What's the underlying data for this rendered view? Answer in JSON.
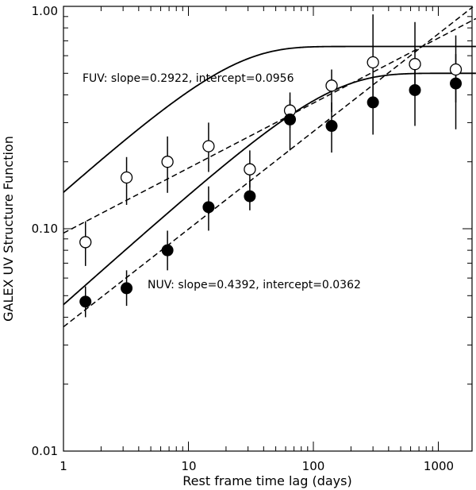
{
  "chart_data": {
    "type": "scatter",
    "title": "",
    "xlabel": "Rest frame time lag (days)",
    "ylabel": "GALEX UV Structure Function",
    "xscale": "log",
    "yscale": "log",
    "xlim": [
      1,
      2000
    ],
    "ylim": [
      0.01,
      1.0
    ],
    "x_tick_labels": [
      "1",
      "10",
      "100",
      "1000"
    ],
    "y_tick_labels": [
      "0.01",
      "0.10",
      "1.00"
    ],
    "annotations": [
      {
        "id": "fuv",
        "text": "FUV: slope=0.2922, intercept=0.0956"
      },
      {
        "id": "nuv",
        "text": "NUV: slope=0.4392, intercept=0.0362"
      }
    ],
    "series": [
      {
        "name": "FUV",
        "marker": "open-circle",
        "x": [
          1.5,
          3.2,
          6.8,
          14.5,
          31,
          65,
          140,
          300,
          650,
          1380
        ],
        "y": [
          0.087,
          0.17,
          0.2,
          0.235,
          0.185,
          0.34,
          0.44,
          0.56,
          0.55,
          0.52
        ],
        "y_err_low": [
          0.068,
          0.128,
          0.145,
          0.18,
          0.153,
          0.285,
          0.335,
          0.385,
          0.4,
          0.37
        ],
        "y_err_high": [
          0.108,
          0.21,
          0.26,
          0.3,
          0.225,
          0.38,
          0.52,
          0.92,
          0.85,
          0.74
        ]
      },
      {
        "name": "NUV",
        "marker": "filled-circle",
        "x": [
          1.5,
          3.2,
          6.8,
          14.5,
          31,
          65,
          140,
          300,
          650,
          1380
        ],
        "y": [
          0.047,
          0.054,
          0.08,
          0.125,
          0.14,
          0.31,
          0.29,
          0.37,
          0.42,
          0.45
        ],
        "y_err_low": [
          0.04,
          0.045,
          0.065,
          0.098,
          0.121,
          0.225,
          0.22,
          0.265,
          0.29,
          0.28
        ],
        "y_err_high": [
          0.055,
          0.065,
          0.098,
          0.155,
          0.163,
          0.41,
          0.37,
          0.48,
          0.56,
          0.61
        ]
      }
    ],
    "fits": [
      {
        "name": "FUV power law",
        "style": "dashed",
        "form": "intercept*x^slope",
        "slope": 0.2922,
        "intercept": 0.0956
      },
      {
        "name": "NUV power law",
        "style": "dashed",
        "form": "intercept*x^slope",
        "slope": 0.4392,
        "intercept": 0.0362
      },
      {
        "name": "FUV saturating model",
        "style": "solid",
        "form": "sf_inf*sqrt(1-exp(-x/tau))",
        "sf_inf": 0.66,
        "tau": 20
      },
      {
        "name": "NUV saturating model",
        "style": "solid",
        "form": "sf_inf*sqrt(1-exp(-x/tau))",
        "sf_inf": 0.5,
        "tau": 120
      }
    ]
  }
}
